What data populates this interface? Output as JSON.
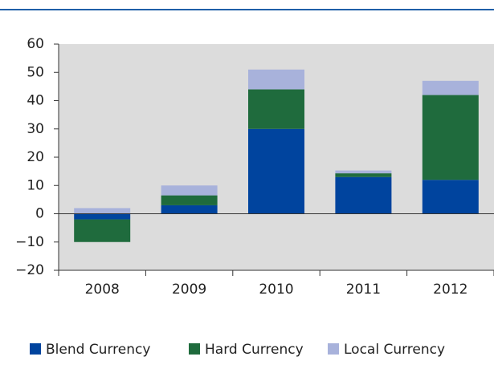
{
  "chart_data": {
    "type": "stacked_bar",
    "categories": [
      "2008",
      "2009",
      "2010",
      "2011",
      "2012"
    ],
    "series": [
      {
        "name": "Blend Currency",
        "color": "#00449e",
        "values": [
          -2,
          3,
          30,
          13,
          12
        ]
      },
      {
        "name": "Hard Currency",
        "color": "#1f6b3d",
        "values": [
          -8,
          3.5,
          14,
          1.3,
          30
        ]
      },
      {
        "name": "Local Currency",
        "color": "#a8b2db",
        "values": [
          2,
          3.5,
          7,
          1,
          5
        ]
      }
    ],
    "ylim": [
      -20,
      60
    ],
    "yticks": [
      {
        "value": -20,
        "label": "−20"
      },
      {
        "value": -10,
        "label": "−10"
      },
      0,
      10,
      20,
      30,
      40,
      50,
      60
    ],
    "legend": "bottom"
  }
}
